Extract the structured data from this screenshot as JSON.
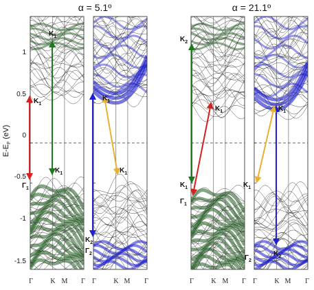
{
  "titles": {
    "left": "α = 5.1º",
    "right": "α = 21.1º"
  },
  "y_axis": {
    "label_main": "E-E",
    "label_sub": "F",
    "label_unit": " (eV)",
    "ticks": [
      "1",
      "0.5",
      "0",
      "-0.5",
      "-1",
      "-1.5"
    ]
  },
  "k_path_labels": [
    "Γ",
    "K",
    "M",
    "Γ"
  ],
  "point_labels": {
    "K": "K",
    "Gamma": "Γ",
    "sub1": "1",
    "sub2": "2"
  },
  "colors": {
    "green_band": "#1f5a1f",
    "blue_band": "#1d1dcc",
    "arrow_green": "#1f7a1f",
    "arrow_red": "#d42020",
    "arrow_blue": "#2020d0",
    "arrow_yellow": "#e8b030"
  },
  "chart_data": {
    "type": "band-structure",
    "ylim": [
      -1.58,
      1.58
    ],
    "panels": [
      {
        "group": "α = 5.1º",
        "projection": "green",
        "path": [
          "Γ",
          "K",
          "M",
          "Γ"
        ]
      },
      {
        "group": "α = 5.1º",
        "projection": "blue",
        "path": [
          "Γ",
          "K",
          "M",
          "Γ"
        ]
      },
      {
        "group": "α = 21.1º",
        "projection": "green",
        "path": [
          "Γ",
          "K",
          "M",
          "Γ"
        ]
      },
      {
        "group": "α = 21.1º",
        "projection": "blue",
        "path": [
          "Γ",
          "K",
          "M",
          "Γ"
        ]
      }
    ],
    "transitions": [
      {
        "group": "α = 5.1º",
        "color": "red",
        "from": "Γ1",
        "from_energy": -0.58,
        "to": "K1",
        "to_energy": 0.45
      },
      {
        "group": "α = 5.1º",
        "color": "green",
        "from": "K1",
        "from_energy": -0.48,
        "to": "K1",
        "to_energy": 1.12
      },
      {
        "group": "α = 5.1º",
        "color": "blue",
        "from": "Γ2",
        "from_energy": -1.22,
        "to": "K1",
        "to_energy": 0.5
      },
      {
        "group": "α = 5.1º",
        "color": "yellow",
        "from": "K1",
        "from_energy": -0.48,
        "to": "K1",
        "to_energy": 0.5
      },
      {
        "group": "α = 21.1º",
        "color": "green",
        "from": "K1",
        "from_energy": -0.65,
        "to": "K2",
        "to_energy": 1.15
      },
      {
        "group": "α = 21.1º",
        "color": "red",
        "from": "Γ1",
        "from_energy": -0.7,
        "to": "K1",
        "to_energy": 0.35
      },
      {
        "group": "α = 21.1º",
        "color": "blue",
        "from": "K1",
        "from_energy": 0.42,
        "to": "K2",
        "to_energy": -1.35
      },
      {
        "group": "α = 21.1º",
        "color": "yellow",
        "from": "K1",
        "from_energy": -0.65,
        "to": "K1",
        "to_energy": 0.42
      }
    ]
  }
}
